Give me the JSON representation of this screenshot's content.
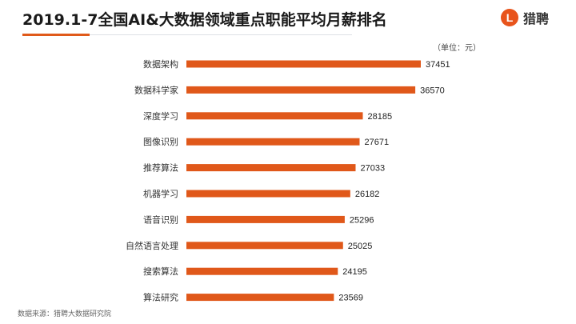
{
  "header": {
    "title": "2019.1-7全国AI&大数据领域重点职能平均月薪排名",
    "logo_text": "猎聘",
    "logo_letter": "L"
  },
  "unit_label": "（单位：元）",
  "source_note": "数据来源：猎聘大数据研究院",
  "colors": {
    "bar": "#e0581a",
    "accent": "#e05a1a"
  },
  "chart_data": {
    "type": "bar",
    "orientation": "horizontal",
    "title": "2019.1-7全国AI&大数据领域重点职能平均月薪排名",
    "xlabel": "",
    "ylabel": "",
    "grid": false,
    "categories": [
      "数据架构",
      "数据科学家",
      "深度学习",
      "图像识别",
      "推荐算法",
      "机器学习",
      "语音识别",
      "自然语言处理",
      "搜索算法",
      "算法研究"
    ],
    "values": [
      37451,
      36570,
      28185,
      27671,
      27033,
      26182,
      25296,
      25025,
      24195,
      23569
    ],
    "xlim": [
      0,
      37451
    ]
  }
}
